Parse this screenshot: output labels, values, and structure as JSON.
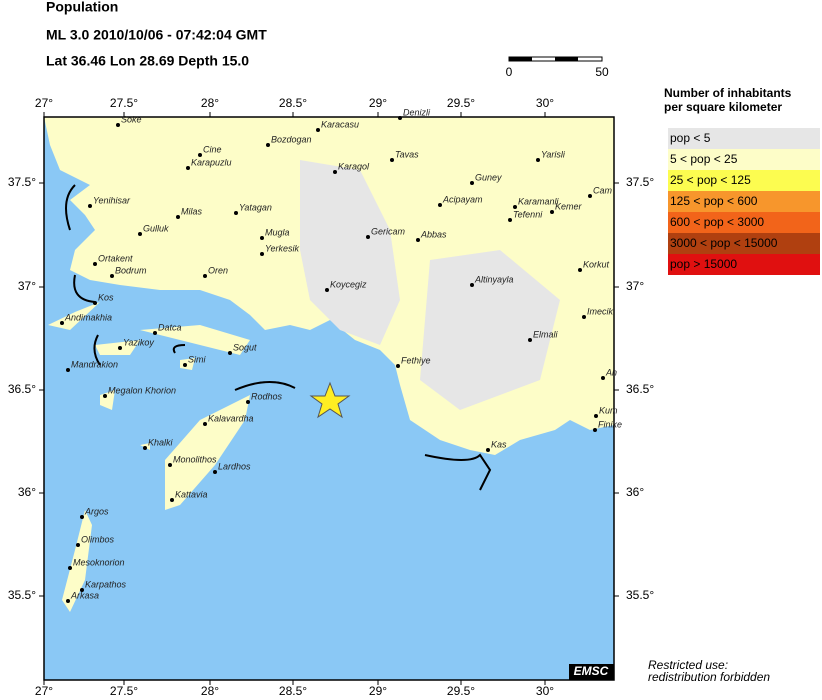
{
  "header": {
    "title": "Population",
    "event": "ML 3.0  2010/10/06 - 07:42:04 GMT",
    "location": "Lat 36.46    Lon  28.69    Depth  15.0"
  },
  "scale": {
    "labels": [
      "0",
      "50"
    ]
  },
  "map": {
    "lon_labels": [
      "27°",
      "27.5°",
      "28°",
      "28.5°",
      "29°",
      "29.5°",
      "30°"
    ],
    "lat_labels": [
      "37.5°",
      "37°",
      "36.5°",
      "36°",
      "35.5°"
    ],
    "places": [
      "Soke",
      "Denizli",
      "Karacasu",
      "Bozdogan",
      "Cine",
      "Karapuzlu",
      "Karagol",
      "Tavas",
      "Guney",
      "Yarisli",
      "Cam",
      "Yenihisar",
      "Milas",
      "Yatagan",
      "Acipayam",
      "Karamanli",
      "Kemer",
      "Tefenni",
      "Gulluk",
      "Mugla",
      "Gericam",
      "Abbas",
      "Ortakent",
      "Yerkesik",
      "Korkut",
      "Bodrum",
      "Oren",
      "Koycegiz",
      "Altinyayla",
      "Kos",
      "Andimakhia",
      "Imecik",
      "Datca",
      "Yazikoy",
      "Elmali",
      "Simi",
      "Sogut",
      "Fethiye",
      "Mandrakion",
      "Megalon Khorion",
      "Rodhos",
      "Kalavardha",
      "Kum",
      "Finike",
      "Khalki",
      "Kas",
      "Monolithos",
      "Lardhos",
      "Kattavia",
      "Argos",
      "Olimbos",
      "Mesoknorion",
      "Karpathos",
      "Arkasa",
      "An"
    ],
    "credit": "EMSC"
  },
  "legend": {
    "title": [
      "Number of inhabitants",
      "per square kilometer"
    ],
    "items": [
      {
        "label": "pop < 5",
        "color": "#e6e6e6"
      },
      {
        "label": "5 < pop < 25",
        "color": "#fdfdc8"
      },
      {
        "label": "25 < pop < 125",
        "color": "#fcfc50"
      },
      {
        "label": "125 < pop < 600",
        "color": "#f7962c"
      },
      {
        "label": "600 < pop < 3000",
        "color": "#f2641a"
      },
      {
        "label": "3000 < pop < 15000",
        "color": "#b04010"
      },
      {
        "label": "pop > 15000",
        "color": "#e01010"
      }
    ]
  },
  "footer": [
    "Restricted use:",
    "redistribution forbidden"
  ]
}
